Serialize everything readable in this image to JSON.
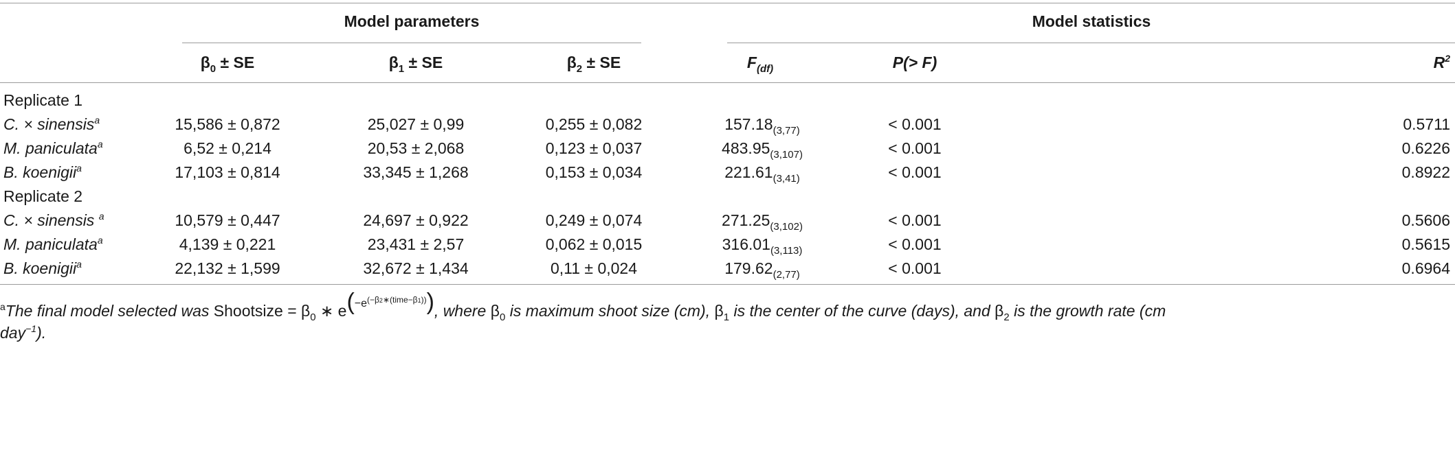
{
  "header": {
    "group1": "Model parameters",
    "group2": "Model statistics",
    "b0_sym": "β",
    "b0_sub": "0",
    "b0_rest": " ± SE",
    "b1_sym": "β",
    "b1_sub": "1",
    "b1_rest": " ± SE",
    "b2_sym": "β",
    "b2_sub": "2",
    "b2_rest": " ± SE",
    "f_main": "F",
    "f_sub": "(df)",
    "p_label": "P(> F)",
    "r_main": "R",
    "r_sup": "2"
  },
  "sections": [
    {
      "label": "Replicate 1",
      "rows": [
        {
          "species": "C. × sinensis",
          "sup": "a",
          "b0": "15,586 ± 0,872",
          "b1": "25,027 ± 0,99",
          "b2": "0,255 ± 0,082",
          "f": "157.18",
          "df": "(3,77)",
          "p": "< 0.001",
          "r2": "0.5711"
        },
        {
          "species": "M. paniculata",
          "sup": "a",
          "b0": "6,52 ± 0,214",
          "b1": "20,53 ± 2,068",
          "b2": "0,123 ± 0,037",
          "f": "483.95",
          "df": "(3,107)",
          "p": "< 0.001",
          "r2": "0.6226"
        },
        {
          "species": "B. koenigii",
          "sup": "a",
          "b0": "17,103 ± 0,814",
          "b1": "33,345 ± 1,268",
          "b2": "0,153 ± 0,034",
          "f": "221.61",
          "df": "(3,41)",
          "p": "< 0.001",
          "r2": "0.8922"
        }
      ]
    },
    {
      "label": "Replicate 2",
      "rows": [
        {
          "species": "C. × sinensis ",
          "sup": "a",
          "b0": "10,579 ± 0,447",
          "b1": "24,697 ± 0,922",
          "b2": "0,249 ± 0,074",
          "f": "271.25",
          "df": "(3,102)",
          "p": "< 0.001",
          "r2": "0.5606"
        },
        {
          "species": "M. paniculata",
          "sup": "a",
          "b0": "4,139 ± 0,221",
          "b1": "23,431 ± 2,57",
          "b2": "0,062 ± 0,015",
          "f": "316.01",
          "df": "(3,113)",
          "p": "< 0.001",
          "r2": "0.5615"
        },
        {
          "species": "B. koenigii",
          "sup": "a",
          "b0": "22,132 ± 1,599",
          "b1": "32,672 ± 1,434",
          "b2": "0,11 ± 0,024",
          "f": "179.62",
          "df": "(2,77)",
          "p": "< 0.001",
          "r2": "0.6964"
        }
      ]
    }
  ],
  "footnote": {
    "marker": "a",
    "intro": "The final model selected was ",
    "lhs": "Shootsize = β",
    "lhs_sub": "0",
    "mult": " ∗ e",
    "exp_open": "(",
    "exp_neg_e": "−e",
    "exp_inner": "(−β",
    "exp_inner_sub": "2",
    "exp_inner_rest": "∗(time−β",
    "exp_inner_sub2": "1",
    "exp_inner_close": "))",
    "exp_close": ")",
    "mid1": ", where ",
    "b0": "β",
    "b0_sub": "0",
    "mid2": " is maximum shoot size (cm), ",
    "b1": "β",
    "b1_sub": "1",
    "mid3": " is the center of the curve (days), and ",
    "b2": "β",
    "b2_sub": "2",
    "mid4": " is the growth rate (cm",
    "line2_a": "day",
    "line2_sup": "−1",
    "line2_b": ")."
  }
}
